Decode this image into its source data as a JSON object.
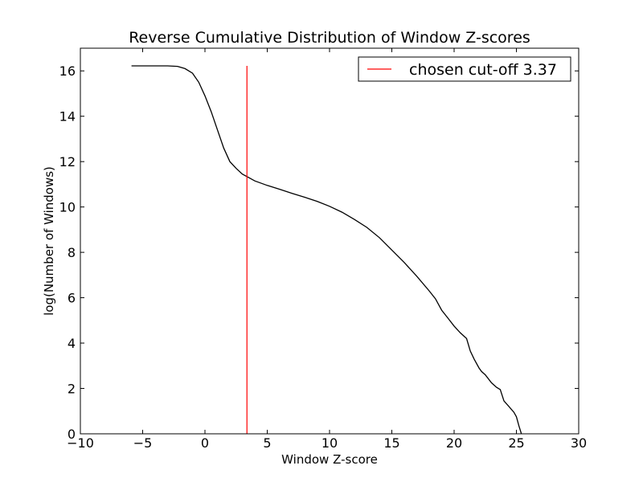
{
  "chart_data": {
    "type": "line",
    "title": "Reverse Cumulative Distribution of Window Z-scores",
    "xlabel": "Window Z-score",
    "ylabel": "log(Number of Windows)",
    "xlim": [
      -10,
      30
    ],
    "ylim": [
      0,
      17
    ],
    "x_ticks": [
      -10,
      -5,
      0,
      5,
      10,
      15,
      20,
      25,
      30
    ],
    "x_tick_labels": [
      "−10",
      "−5",
      "0",
      "5",
      "10",
      "15",
      "20",
      "25",
      "30"
    ],
    "y_ticks": [
      0,
      2,
      4,
      6,
      8,
      10,
      12,
      14,
      16
    ],
    "y_tick_labels": [
      "0",
      "2",
      "4",
      "6",
      "8",
      "10",
      "12",
      "14",
      "16"
    ],
    "grid": false,
    "legend": {
      "position": "top-right",
      "entries": [
        {
          "label": "chosen cut-off 3.37",
          "color": "#ff0000"
        }
      ]
    },
    "series": [
      {
        "color": "#000000",
        "x": [
          -5.9,
          -4.0,
          -3.0,
          -2.2,
          -1.6,
          -1.0,
          -0.5,
          0,
          0.5,
          1.0,
          1.5,
          2.0,
          2.5,
          3.0,
          3.5,
          4.0,
          5.0,
          6.0,
          7.0,
          8.0,
          9.0,
          10.0,
          11.0,
          12.0,
          13.0,
          14.0,
          15.0,
          16.0,
          17.0,
          18.0,
          18.5,
          19.0,
          19.5,
          20.0,
          20.5,
          21.0,
          21.3,
          21.6,
          22.0,
          22.2,
          22.5,
          23.0,
          23.4,
          23.7,
          24.0,
          24.4,
          24.8,
          25.0,
          25.2,
          25.4
        ],
        "y": [
          16.22,
          16.22,
          16.22,
          16.2,
          16.1,
          15.9,
          15.5,
          14.9,
          14.2,
          13.4,
          12.6,
          12.0,
          11.7,
          11.45,
          11.3,
          11.15,
          10.95,
          10.78,
          10.6,
          10.43,
          10.25,
          10.03,
          9.77,
          9.45,
          9.1,
          8.65,
          8.1,
          7.55,
          6.95,
          6.3,
          5.95,
          5.45,
          5.1,
          4.75,
          4.45,
          4.2,
          3.65,
          3.3,
          2.9,
          2.75,
          2.6,
          2.25,
          2.05,
          1.95,
          1.45,
          1.2,
          0.95,
          0.75,
          0.35,
          0.0
        ]
      }
    ],
    "vertical_lines": [
      {
        "x": 3.37,
        "y_range": [
          0,
          16.22
        ],
        "color": "#ff0000",
        "label": "chosen cut-off 3.37"
      }
    ]
  }
}
